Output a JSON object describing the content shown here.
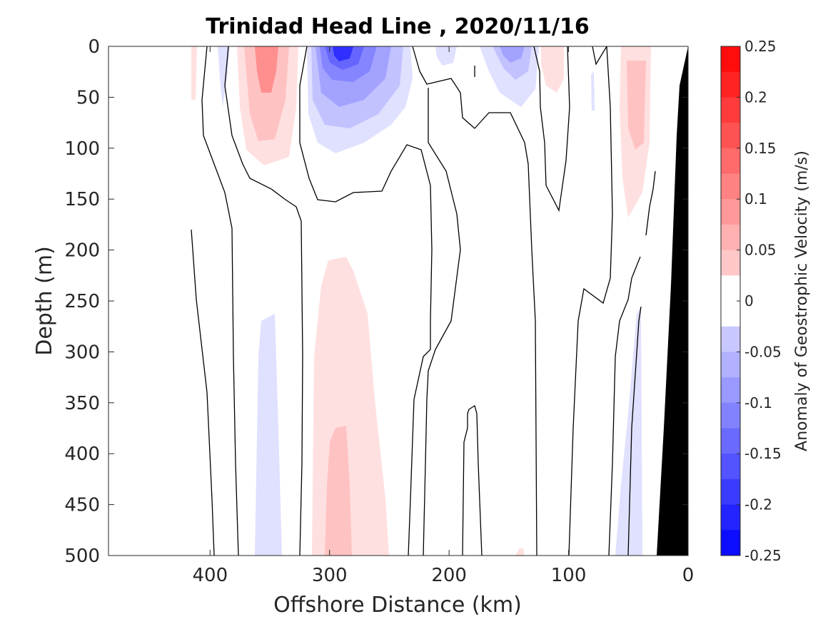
{
  "chart_data": {
    "type": "heatmap",
    "subtype": "filled-contour-section",
    "title": "Trinidad Head Line , 2020/11/16",
    "xlabel": "Offshore Distance (km)",
    "ylabel": "Depth (m)",
    "xlim": [
      485,
      0
    ],
    "ylim": [
      0,
      500
    ],
    "x_direction": "reversed",
    "y_direction": "reversed",
    "x_ticks": [
      "400",
      "300",
      "200",
      "100",
      "0"
    ],
    "y_ticks": [
      "0",
      "50",
      "100",
      "150",
      "200",
      "250",
      "300",
      "350",
      "400",
      "450",
      "500"
    ],
    "colorbar": {
      "label": "Anomaly of Geostrophic Velocity (m/s)",
      "clim": [
        -0.25,
        0.25
      ],
      "step": 0.025,
      "tick_labels": [
        "0.25",
        "0.2",
        "0.15",
        "0.1",
        "0.05",
        "0",
        "-0.05",
        "-0.1",
        "-0.15",
        "-0.2",
        "-0.25"
      ],
      "positive_color": "#ff0000",
      "negative_color": "#0000ff",
      "zero_color": "#ffffff"
    },
    "bathymetry_color": "#000000",
    "features": [
      {
        "name": "surface negative core near 290 km",
        "x": 290,
        "depth": 10,
        "value": -0.2
      },
      {
        "name": "surface positive core near 355 km",
        "x": 355,
        "depth": 25,
        "value": 0.1
      },
      {
        "name": "surface negative near 150 km",
        "x": 150,
        "depth": 10,
        "value": -0.075
      },
      {
        "name": "surface positive near 45 km",
        "x": 45,
        "depth": 50,
        "value": 0.05
      },
      {
        "name": "deep positive near 290 km",
        "x": 290,
        "depth": 450,
        "value": 0.05
      },
      {
        "name": "deep negative near 355 km",
        "x": 355,
        "depth": 380,
        "value": -0.025
      }
    ]
  }
}
